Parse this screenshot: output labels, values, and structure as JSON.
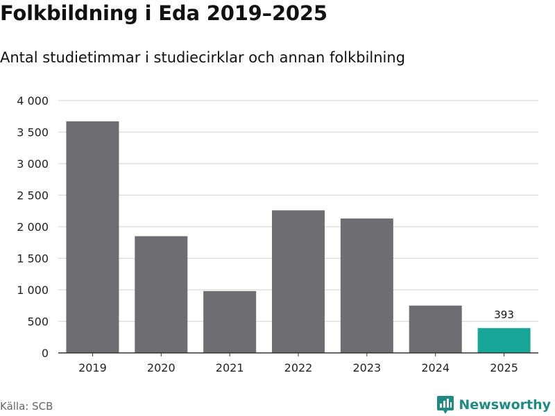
{
  "header": {
    "title": "Folkbildning i Eda 2019–2025",
    "subtitle": "Antal studietimmar i studiecirklar och annan folkbilning"
  },
  "footer": {
    "source": "Källa: SCB",
    "brand": "Newsworthy"
  },
  "colors": {
    "bar": "#6e6d72",
    "highlight": "#16a596",
    "grid": "#d9d9d9",
    "axis": "#333333"
  },
  "chart_data": {
    "type": "bar",
    "title": "Folkbildning i Eda 2019–2025",
    "subtitle": "Antal studietimmar i studiecirklar och annan folkbilning",
    "xlabel": "",
    "ylabel": "",
    "categories": [
      "2019",
      "2020",
      "2021",
      "2022",
      "2023",
      "2024",
      "2025"
    ],
    "values": [
      3670,
      1850,
      980,
      2260,
      2130,
      750,
      393
    ],
    "highlight_index": 6,
    "data_labels": [
      {
        "index": 6,
        "text": "393"
      }
    ],
    "ylim": [
      0,
      4000
    ],
    "yticks": [
      0,
      500,
      1000,
      1500,
      2000,
      2500,
      3000,
      3500,
      4000
    ],
    "ytick_labels": [
      "0",
      "500",
      "1 000",
      "1 500",
      "2 000",
      "2 500",
      "3 000",
      "3 500",
      "4 000"
    ],
    "grid": true,
    "legend": "none"
  }
}
